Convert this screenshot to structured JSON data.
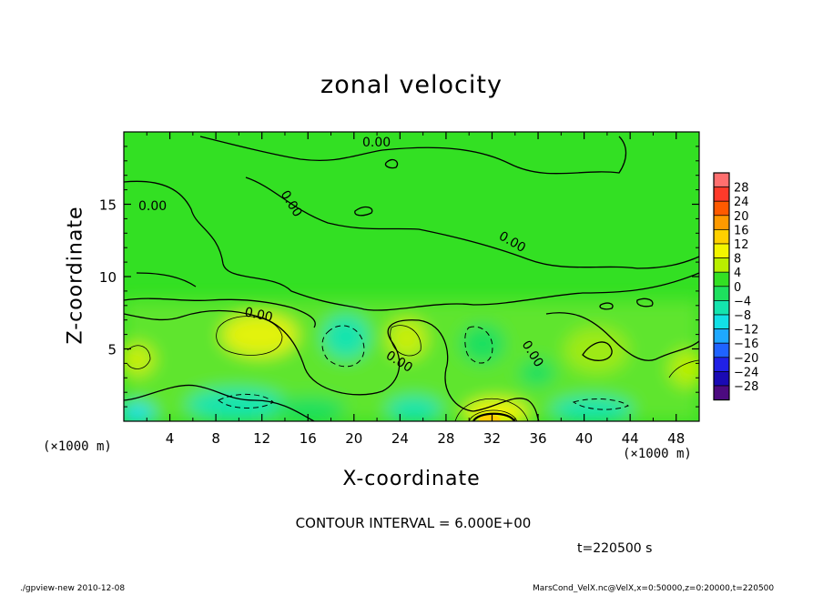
{
  "chart_data": {
    "type": "heatmap",
    "title": "zonal velocity",
    "xlabel": "X-coordinate",
    "ylabel": "Z-coordinate",
    "x_unit_label": "(×1000 m)",
    "y_unit_label": "(×1000 m)",
    "xlim": [
      0,
      50
    ],
    "ylim": [
      0,
      20
    ],
    "x_ticks": [
      4,
      8,
      12,
      16,
      20,
      24,
      28,
      32,
      36,
      40,
      44,
      48
    ],
    "y_ticks": [
      5,
      10,
      15
    ],
    "contour_interval_label": "CONTOUR INTERVAL = 6.000E+00",
    "contour_labels": [
      "0.00",
      "0.00",
      "0.00",
      "0.00",
      "0.00",
      "0.00",
      "0.00"
    ],
    "colorbar": {
      "levels": [
        28,
        24,
        20,
        16,
        12,
        8,
        4,
        0,
        -4,
        -8,
        -12,
        -16,
        -20,
        -24,
        -28
      ],
      "colors": [
        "#ff6f6f",
        "#ff3a2a",
        "#ff5a00",
        "#ff9a00",
        "#ffd000",
        "#f3f500",
        "#b9ef00",
        "#33e023",
        "#1ee05e",
        "#14e4ae",
        "#12e0e6",
        "#1ea8ff",
        "#1f63ff",
        "#2020e6",
        "#1a0ab4",
        "#4c0a80"
      ]
    },
    "time_label": "t=220500 s"
  },
  "footer": {
    "left": "./gpview-new  2010-12-08",
    "right": "MarsCond_VelX.nc@VelX,x=0:50000,z=0:20000,t=220500"
  }
}
